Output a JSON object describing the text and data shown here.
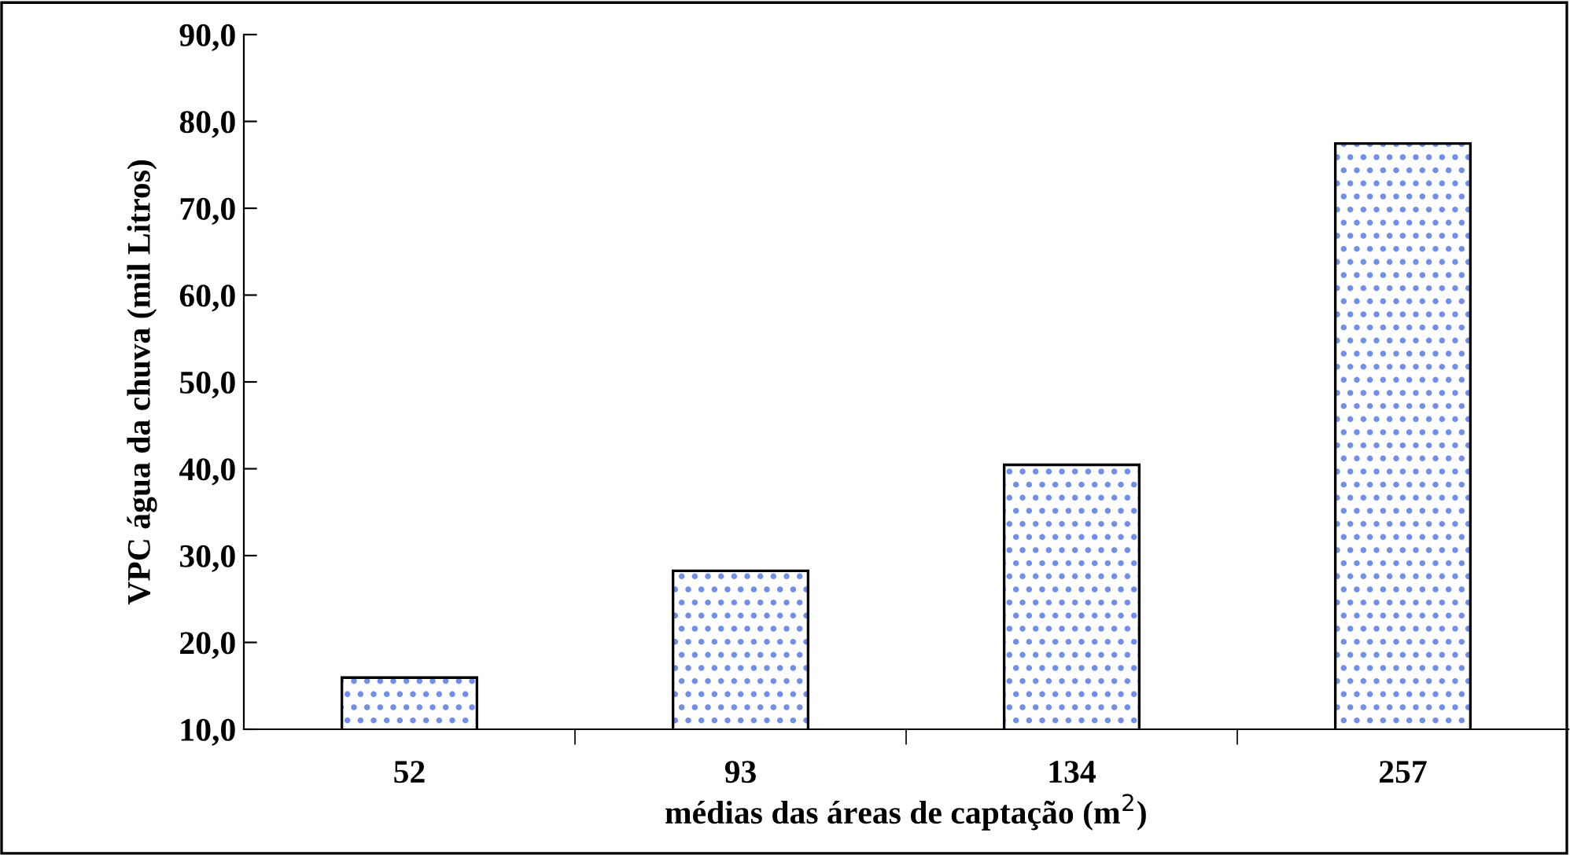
{
  "chart_data": {
    "type": "bar",
    "xlabel": "médias das áreas de captação (m$^{2}$)",
    "ylabel": "VPC água da chuva (mil Litros)",
    "categories": [
      "52",
      "93",
      "134",
      "257"
    ],
    "values": [
      15.8,
      28.1,
      40.3,
      77.3
    ],
    "color": "#6f8ff0",
    "ylim": [
      10,
      90
    ],
    "yticks": [
      {
        "value": 10,
        "label": "10,0"
      },
      {
        "value": 20,
        "label": "20,0"
      },
      {
        "value": 30,
        "label": "30,0"
      },
      {
        "value": 40,
        "label": "40,0"
      },
      {
        "value": 50,
        "label": "50,0"
      },
      {
        "value": 60,
        "label": "60,0"
      },
      {
        "value": 70,
        "label": "70,0"
      },
      {
        "value": 80,
        "label": "80,0"
      },
      {
        "value": 90,
        "label": "90,0"
      }
    ],
    "grid": false,
    "legend": false
  }
}
